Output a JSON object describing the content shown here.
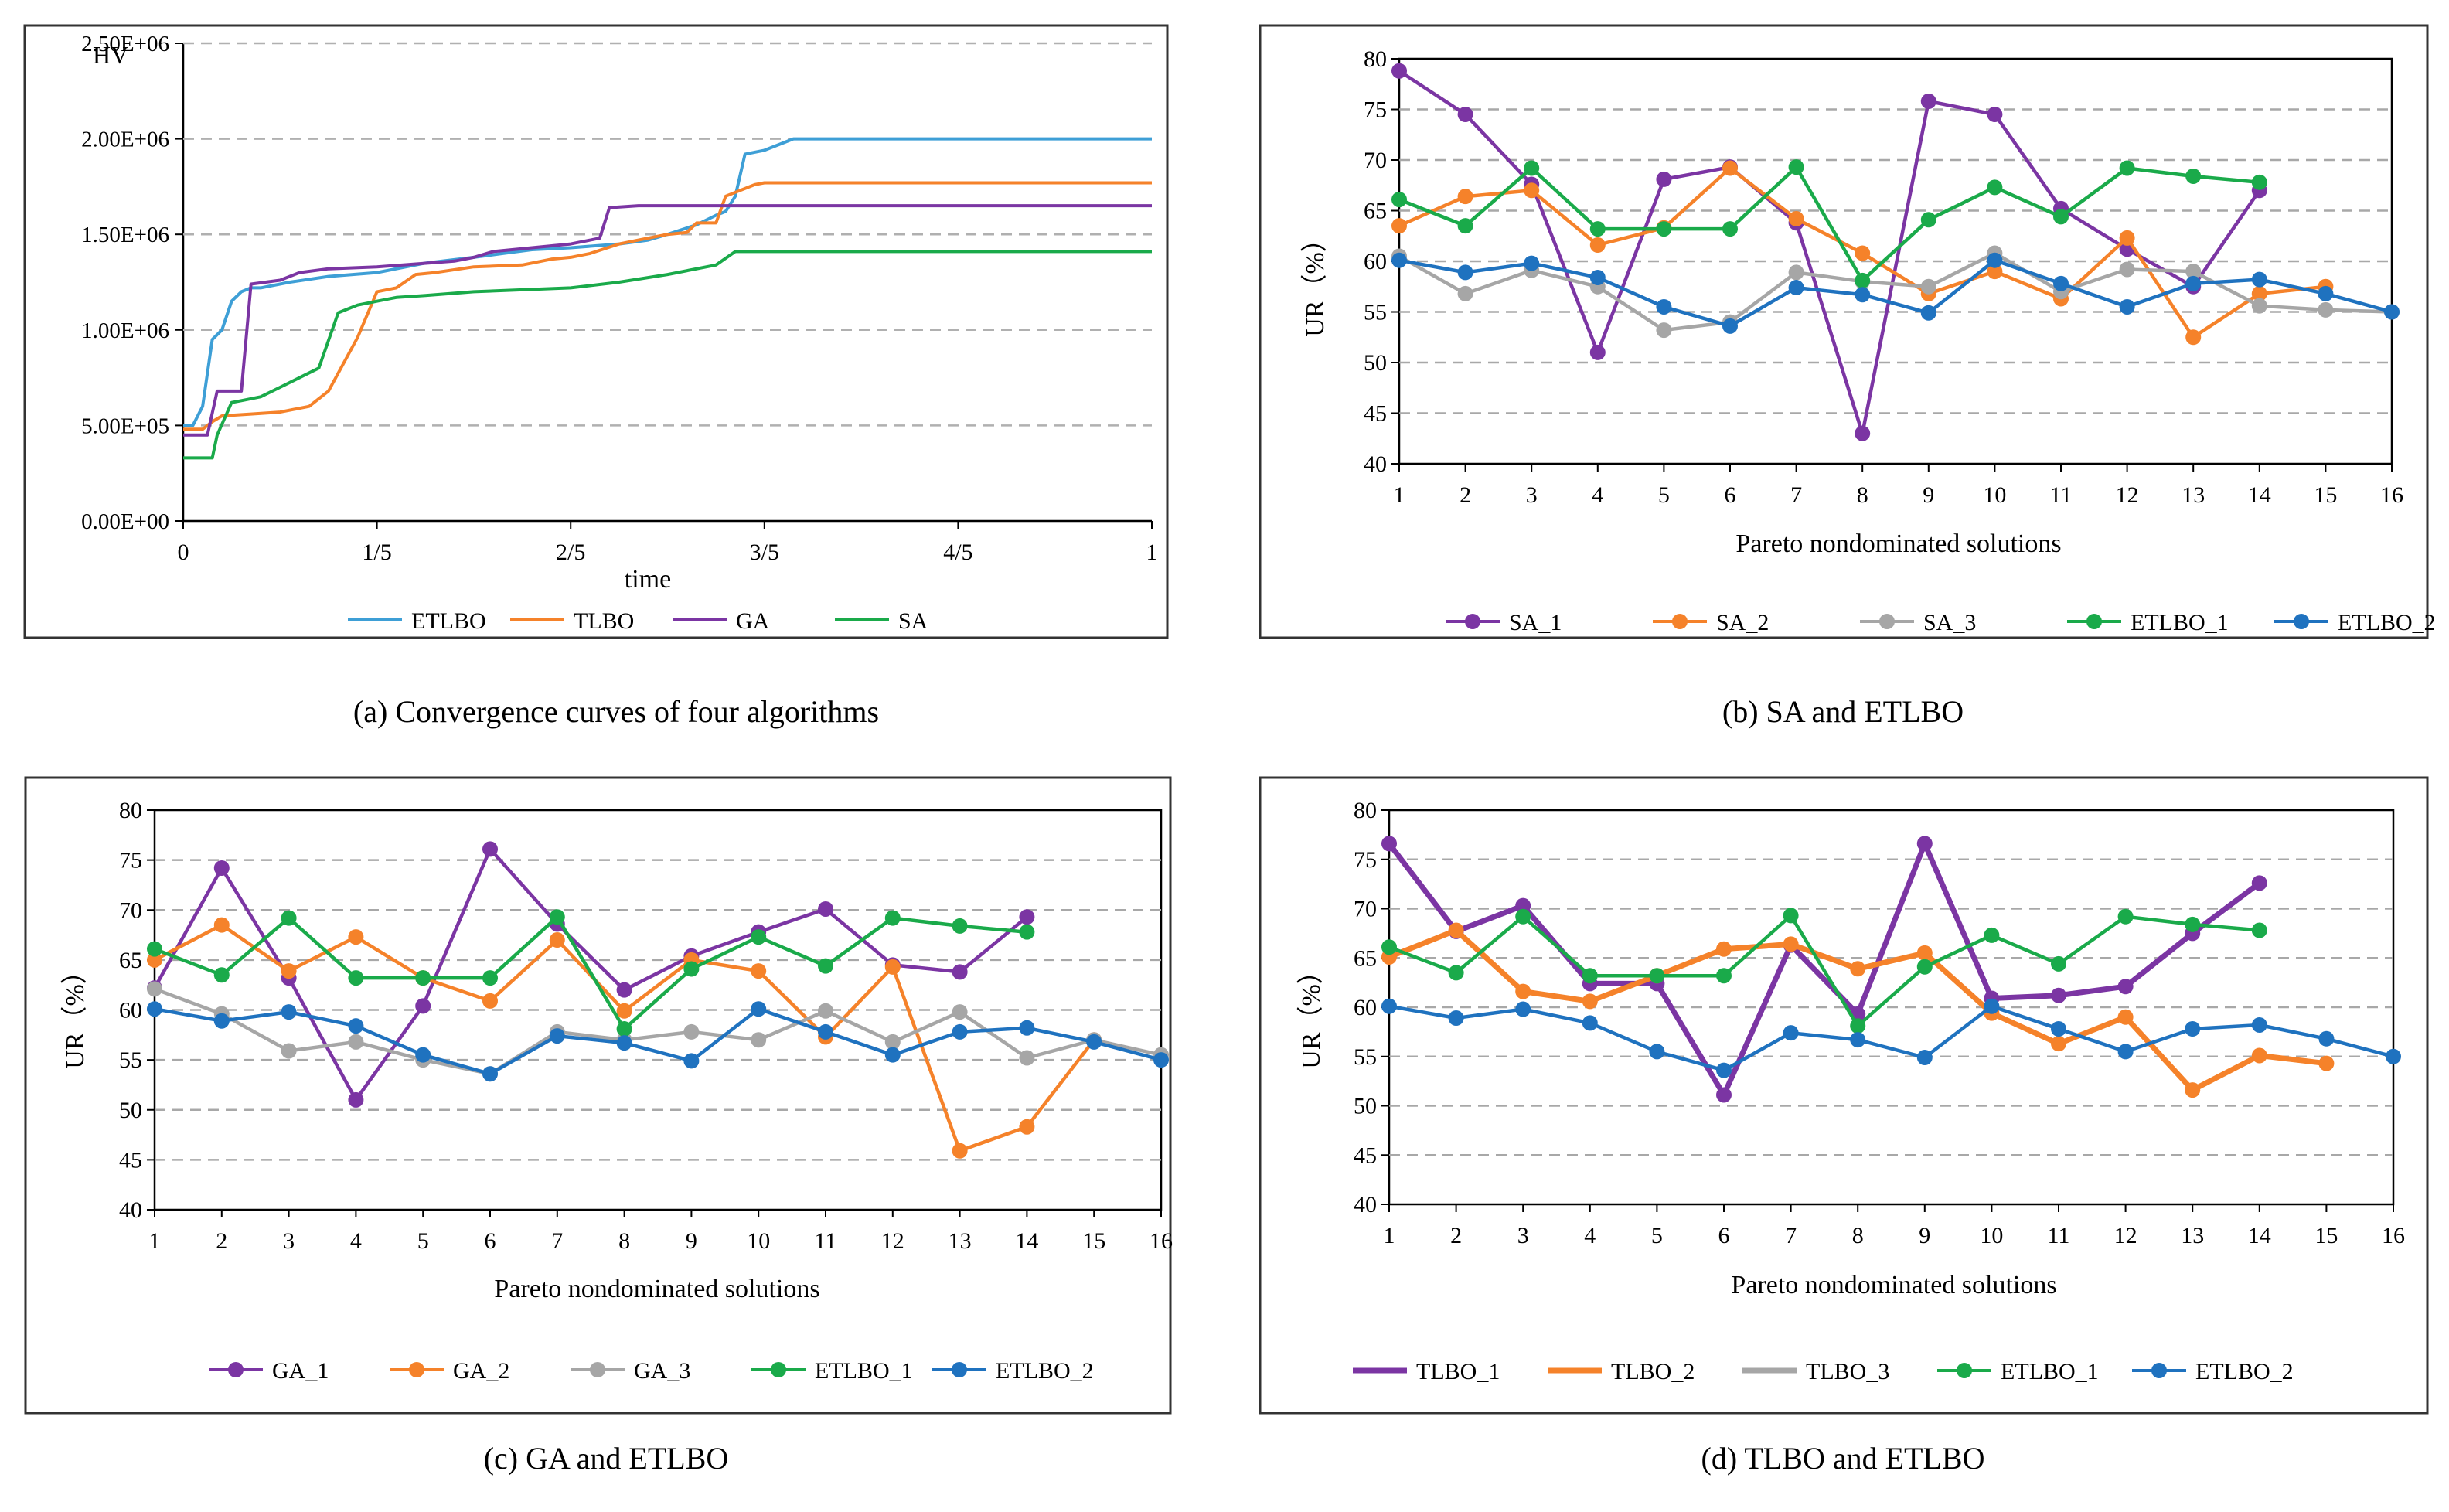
{
  "chart_data": [
    {
      "type": "line",
      "panel": "a",
      "caption": "(a) Convergence curves of four algorithms",
      "ylabel": "HV",
      "xlabel": "time",
      "ytick_labels": [
        "0.00E+00",
        "5.00E+05",
        "1.00E+06",
        "1.50E+06",
        "2.00E+06",
        "2.50E+06"
      ],
      "xtick_labels": [
        "0",
        "1/5",
        "2/5",
        "3/5",
        "4/5",
        "1"
      ],
      "ylim": [
        0,
        2500000
      ],
      "xlim": [
        0,
        1
      ],
      "grid": true,
      "legend_position": "bottom",
      "series": [
        {
          "name": "ETLBO",
          "color": "#3E9FD6",
          "x": [
            0,
            0.01,
            0.02,
            0.03,
            0.04,
            0.05,
            0.06,
            0.07,
            0.075,
            0.08,
            0.11,
            0.15,
            0.2,
            0.25,
            0.3,
            0.33,
            0.36,
            0.4,
            0.45,
            0.48,
            0.5,
            0.53,
            0.55,
            0.56,
            0.57,
            0.58,
            0.6,
            0.63,
            0.65,
            0.7,
            0.75,
            0.8,
            0.9,
            1
          ],
          "y": [
            500000,
            500000,
            600000,
            950000,
            1000000,
            1150000,
            1200000,
            1220000,
            1220000,
            1220000,
            1250000,
            1280000,
            1300000,
            1350000,
            1380000,
            1400000,
            1420000,
            1430000,
            1450000,
            1470000,
            1500000,
            1550000,
            1600000,
            1620000,
            1700000,
            1920000,
            1940000,
            2000000,
            2000000,
            2000000,
            2000000,
            2000000,
            2000000,
            2000000
          ]
        },
        {
          "name": "TLBO",
          "color": "#F5822A",
          "x": [
            0,
            0.02,
            0.03,
            0.04,
            0.07,
            0.1,
            0.13,
            0.15,
            0.18,
            0.2,
            0.22,
            0.24,
            0.26,
            0.3,
            0.35,
            0.38,
            0.4,
            0.42,
            0.45,
            0.48,
            0.5,
            0.52,
            0.53,
            0.55,
            0.56,
            0.57,
            0.59,
            0.6,
            0.7,
            0.8,
            0.9,
            1
          ],
          "y": [
            480000,
            480000,
            520000,
            550000,
            560000,
            570000,
            600000,
            680000,
            960000,
            1200000,
            1220000,
            1290000,
            1300000,
            1330000,
            1340000,
            1370000,
            1380000,
            1400000,
            1450000,
            1480000,
            1500000,
            1510000,
            1560000,
            1560000,
            1700000,
            1720000,
            1760000,
            1770000,
            1770000,
            1770000,
            1770000,
            1770000
          ]
        },
        {
          "name": "GA",
          "color": "#7B35A3",
          "x": [
            0,
            0.025,
            0.035,
            0.06,
            0.07,
            0.1,
            0.12,
            0.15,
            0.2,
            0.28,
            0.3,
            0.32,
            0.36,
            0.4,
            0.43,
            0.44,
            0.47,
            0.5,
            0.6,
            0.7,
            0.8,
            0.9,
            1
          ],
          "y": [
            450000,
            450000,
            680000,
            680000,
            1240000,
            1260000,
            1300000,
            1320000,
            1330000,
            1360000,
            1380000,
            1410000,
            1430000,
            1450000,
            1480000,
            1640000,
            1650000,
            1650000,
            1650000,
            1650000,
            1650000,
            1650000,
            1650000
          ]
        },
        {
          "name": "SA",
          "color": "#1AAA4A",
          "x": [
            0,
            0.03,
            0.035,
            0.05,
            0.06,
            0.08,
            0.1,
            0.12,
            0.14,
            0.16,
            0.17,
            0.18,
            0.2,
            0.22,
            0.25,
            0.3,
            0.35,
            0.4,
            0.45,
            0.5,
            0.55,
            0.57,
            0.6,
            0.7,
            0.8,
            0.9,
            1
          ],
          "y": [
            330000,
            330000,
            450000,
            620000,
            630000,
            650000,
            700000,
            750000,
            800000,
            1090000,
            1110000,
            1130000,
            1150000,
            1170000,
            1180000,
            1200000,
            1210000,
            1220000,
            1250000,
            1290000,
            1340000,
            1410000,
            1410000,
            1410000,
            1410000,
            1410000,
            1410000
          ]
        }
      ]
    },
    {
      "type": "line",
      "panel": "b",
      "caption": "(b) SA and ETLBO",
      "ylabel": "UR（%）",
      "xlabel": "Pareto nondominated solutions",
      "ylim": [
        40,
        80
      ],
      "yticks": [
        40,
        45,
        50,
        55,
        60,
        65,
        70,
        75,
        80
      ],
      "xticks": [
        1,
        2,
        3,
        4,
        5,
        6,
        7,
        8,
        9,
        10,
        11,
        12,
        13,
        14,
        15,
        16
      ],
      "grid": true,
      "legend_position": "bottom",
      "series": [
        {
          "name": "SA_1",
          "color": "#7B35A3",
          "x": [
            1,
            2,
            3,
            4,
            5,
            6,
            7,
            8,
            9,
            10,
            11,
            12,
            13,
            14
          ],
          "y": [
            78.8,
            74.5,
            67.6,
            51,
            68.1,
            69.3,
            63.8,
            43,
            75.8,
            74.5,
            65.2,
            61.2,
            57.5,
            67
          ]
        },
        {
          "name": "SA_2",
          "color": "#F5822A",
          "x": [
            1,
            2,
            3,
            4,
            5,
            6,
            7,
            8,
            9,
            10,
            11,
            12,
            13,
            14,
            15
          ],
          "y": [
            63.5,
            66.4,
            67,
            61.6,
            63.3,
            69.2,
            64.2,
            60.8,
            56.8,
            59,
            56.3,
            62.3,
            52.5,
            56.8,
            57.5
          ]
        },
        {
          "name": "SA_3",
          "color": "#A6A6A6",
          "x": [
            1,
            2,
            3,
            4,
            5,
            6,
            7,
            8,
            9,
            10,
            11,
            12,
            13,
            14,
            15,
            16
          ],
          "y": [
            60.5,
            56.8,
            59.1,
            57.5,
            53.2,
            54,
            58.9,
            58,
            57.5,
            60.8,
            57,
            59.2,
            59,
            55.6,
            55.2,
            55
          ]
        },
        {
          "name": "ETLBO_1",
          "color": "#1AAA4A",
          "x": [
            1,
            2,
            3,
            4,
            5,
            6,
            7,
            8,
            9,
            10,
            11,
            12,
            13,
            14
          ],
          "y": [
            66.1,
            63.5,
            69.2,
            63.2,
            63.2,
            63.2,
            69.3,
            58.1,
            64.1,
            67.3,
            64.4,
            69.2,
            68.4,
            67.8
          ]
        },
        {
          "name": "ETLBO_2",
          "color": "#1F72BF",
          "x": [
            1,
            2,
            3,
            4,
            5,
            6,
            7,
            8,
            9,
            10,
            11,
            12,
            13,
            14,
            15,
            16
          ],
          "y": [
            60.1,
            58.9,
            59.8,
            58.4,
            55.5,
            53.6,
            57.4,
            56.7,
            54.9,
            60.1,
            57.8,
            55.5,
            57.8,
            58.2,
            56.8,
            55
          ]
        }
      ]
    },
    {
      "type": "line",
      "panel": "c",
      "caption": "(c) GA and ETLBO",
      "ylabel": "UR（%）",
      "xlabel": "Pareto nondominated solutions",
      "ylim": [
        40,
        80
      ],
      "yticks": [
        40,
        45,
        50,
        55,
        60,
        65,
        70,
        75,
        80
      ],
      "xticks": [
        1,
        2,
        3,
        4,
        5,
        6,
        7,
        8,
        9,
        10,
        11,
        12,
        13,
        14,
        15,
        16
      ],
      "grid": true,
      "legend_position": "bottom",
      "series": [
        {
          "name": "GA_1",
          "color": "#7B35A3",
          "x": [
            1,
            2,
            3,
            4,
            5,
            6,
            7,
            8,
            9,
            10,
            11,
            12,
            13,
            14
          ],
          "y": [
            62.2,
            74.2,
            63.2,
            51,
            60.4,
            76.1,
            68.6,
            62,
            65.4,
            67.8,
            70.1,
            64.5,
            63.8,
            69.3
          ]
        },
        {
          "name": "GA_2",
          "color": "#F5822A",
          "x": [
            1,
            2,
            3,
            4,
            5,
            6,
            7,
            8,
            9,
            10,
            11,
            12,
            13,
            14,
            15
          ],
          "y": [
            65,
            68.5,
            63.9,
            67.3,
            63.2,
            60.9,
            67,
            59.9,
            65,
            63.9,
            57.3,
            64.3,
            45.9,
            48.3,
            57
          ]
        },
        {
          "name": "GA_3",
          "color": "#A6A6A6",
          "x": [
            1,
            2,
            3,
            4,
            5,
            6,
            7,
            8,
            9,
            10,
            11,
            12,
            13,
            14,
            15,
            16
          ],
          "y": [
            62.1,
            59.6,
            55.9,
            56.8,
            55,
            53.6,
            57.8,
            57,
            57.8,
            57,
            59.9,
            56.8,
            59.8,
            55.2,
            57,
            55.5
          ]
        },
        {
          "name": "ETLBO_1",
          "color": "#1AAA4A",
          "x": [
            1,
            2,
            3,
            4,
            5,
            6,
            7,
            8,
            9,
            10,
            11,
            12,
            13,
            14
          ],
          "y": [
            66.1,
            63.5,
            69.2,
            63.2,
            63.2,
            63.2,
            69.3,
            58.1,
            64.1,
            67.3,
            64.4,
            69.2,
            68.4,
            67.8
          ]
        },
        {
          "name": "ETLBO_2",
          "color": "#1F72BF",
          "x": [
            1,
            2,
            3,
            4,
            5,
            6,
            7,
            8,
            9,
            10,
            11,
            12,
            13,
            14,
            15,
            16
          ],
          "y": [
            60.1,
            58.9,
            59.8,
            58.4,
            55.5,
            53.6,
            57.4,
            56.7,
            54.9,
            60.1,
            57.8,
            55.5,
            57.8,
            58.2,
            56.8,
            55
          ]
        }
      ]
    },
    {
      "type": "line",
      "panel": "d",
      "caption": "(d) TLBO and ETLBO",
      "ylabel": "UR（%）",
      "xlabel": "Pareto nondominated solutions",
      "ylim": [
        40,
        80
      ],
      "yticks": [
        40,
        45,
        50,
        55,
        60,
        65,
        70,
        75,
        80
      ],
      "xticks": [
        1,
        2,
        3,
        4,
        5,
        6,
        7,
        8,
        9,
        10,
        11,
        12,
        13,
        14,
        15,
        16
      ],
      "grid": true,
      "legend_position": "bottom",
      "series": [
        {
          "name": "TLBO_1",
          "color": "#7B35A3",
          "x": [
            1,
            2,
            3,
            4,
            5,
            6,
            7,
            8,
            9,
            10,
            11,
            12,
            13,
            14
          ],
          "y": [
            76.6,
            67.7,
            70.3,
            62.4,
            62.4,
            51.1,
            66.3,
            59.3,
            76.6,
            60.9,
            61.2,
            62.1,
            67.5,
            72.6
          ]
        },
        {
          "name": "TLBO_2",
          "color": "#F5822A",
          "x": [
            1,
            2,
            3,
            4,
            5,
            6,
            7,
            8,
            9,
            10,
            11,
            12,
            13,
            14,
            15
          ],
          "y": [
            65.1,
            67.8,
            61.6,
            60.6,
            63.2,
            65.9,
            66.4,
            63.9,
            65.5,
            59.4,
            56.3,
            59,
            51.6,
            55.1,
            54.3
          ]
        },
        {
          "name": "TLBO_3",
          "color": "#A6A6A6",
          "x": [],
          "y": []
        },
        {
          "name": "ETLBO_1",
          "color": "#1AAA4A",
          "x": [
            1,
            2,
            3,
            4,
            5,
            6,
            7,
            8,
            9,
            10,
            11,
            12,
            13,
            14
          ],
          "y": [
            66.1,
            63.5,
            69.2,
            63.2,
            63.2,
            63.2,
            69.3,
            58.1,
            64.1,
            67.3,
            64.4,
            69.2,
            68.4,
            67.8
          ]
        },
        {
          "name": "ETLBO_2",
          "color": "#1F72BF",
          "x": [
            1,
            2,
            3,
            4,
            5,
            6,
            7,
            8,
            9,
            10,
            11,
            12,
            13,
            14,
            15,
            16
          ],
          "y": [
            60.1,
            58.9,
            59.8,
            58.4,
            55.5,
            53.6,
            57.4,
            56.7,
            54.9,
            60.1,
            57.8,
            55.5,
            57.8,
            58.2,
            56.8,
            55
          ]
        }
      ]
    }
  ]
}
